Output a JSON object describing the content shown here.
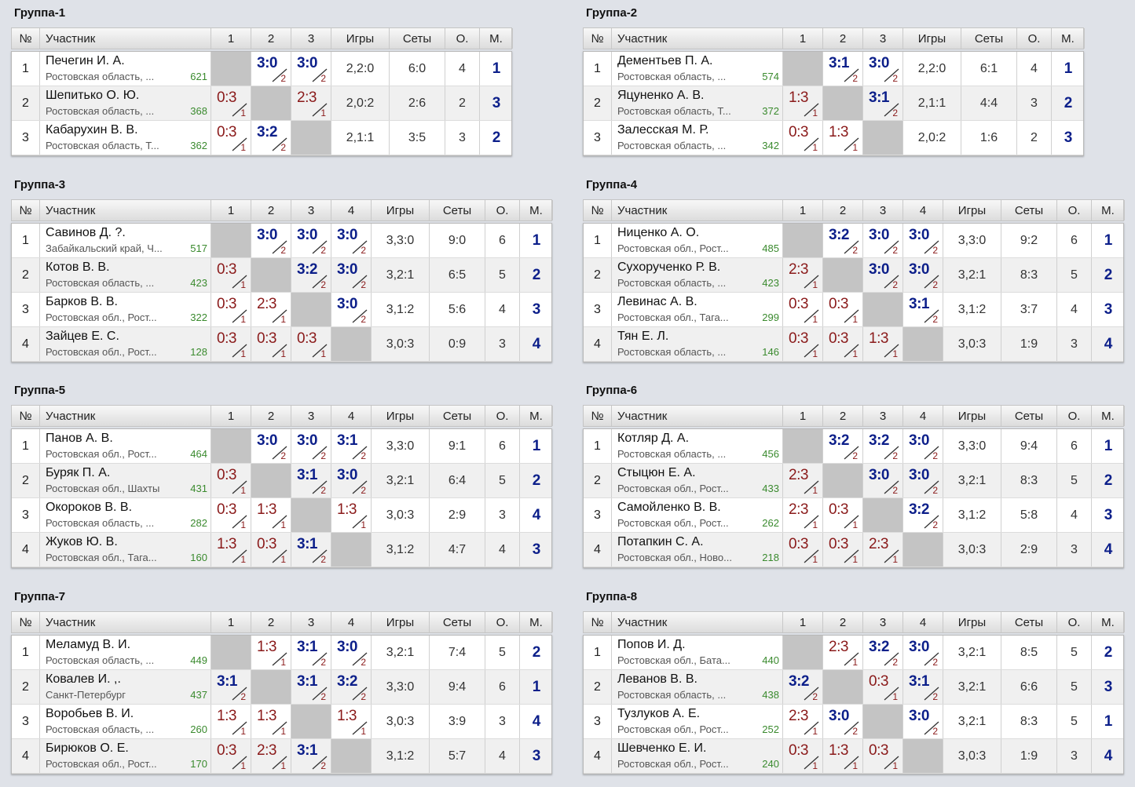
{
  "headers": {
    "num": "№",
    "participant": "Участник",
    "games": "Игры",
    "sets": "Сеты",
    "points": "О.",
    "place": "М."
  },
  "groups": [
    {
      "title": "Группа-1",
      "size": 3,
      "players": [
        {
          "n": "1",
          "name": "Печегин И. А.",
          "region": "Ростовская область, ...",
          "rating": "621",
          "res": [
            null,
            [
              "3:0",
              "2"
            ],
            [
              "3:0",
              "2"
            ]
          ],
          "games": "2,2:0",
          "sets": "6:0",
          "pts": "4",
          "place": "1"
        },
        {
          "n": "2",
          "name": "Шепитько О. Ю.",
          "region": "Ростовская область, ...",
          "rating": "368",
          "res": [
            [
              "0:3",
              "1"
            ],
            null,
            [
              "2:3",
              "1"
            ]
          ],
          "games": "2,0:2",
          "sets": "2:6",
          "pts": "2",
          "place": "3"
        },
        {
          "n": "3",
          "name": "Кабарухин В. В.",
          "region": "Ростовская область, Т...",
          "rating": "362",
          "res": [
            [
              "0:3",
              "1"
            ],
            [
              "3:2",
              "2"
            ],
            null
          ],
          "games": "2,1:1",
          "sets": "3:5",
          "pts": "3",
          "place": "2"
        }
      ]
    },
    {
      "title": "Группа-2",
      "size": 3,
      "players": [
        {
          "n": "1",
          "name": "Дементьев П. А.",
          "region": "Ростовская область, ...",
          "rating": "574",
          "res": [
            null,
            [
              "3:1",
              "2"
            ],
            [
              "3:0",
              "2"
            ]
          ],
          "games": "2,2:0",
          "sets": "6:1",
          "pts": "4",
          "place": "1"
        },
        {
          "n": "2",
          "name": "Яцуненко А. В.",
          "region": "Ростовская область, Т...",
          "rating": "372",
          "res": [
            [
              "1:3",
              "1"
            ],
            null,
            [
              "3:1",
              "2"
            ]
          ],
          "games": "2,1:1",
          "sets": "4:4",
          "pts": "3",
          "place": "2"
        },
        {
          "n": "3",
          "name": "Залесская М. Р.",
          "region": "Ростовская область, ...",
          "rating": "342",
          "res": [
            [
              "0:3",
              "1"
            ],
            [
              "1:3",
              "1"
            ],
            null
          ],
          "games": "2,0:2",
          "sets": "1:6",
          "pts": "2",
          "place": "3"
        }
      ]
    },
    {
      "title": "Группа-3",
      "size": 4,
      "players": [
        {
          "n": "1",
          "name": "Савинов Д. ?.",
          "region": "Забайкальский край, Ч...",
          "rating": "517",
          "res": [
            null,
            [
              "3:0",
              "2"
            ],
            [
              "3:0",
              "2"
            ],
            [
              "3:0",
              "2"
            ]
          ],
          "games": "3,3:0",
          "sets": "9:0",
          "pts": "6",
          "place": "1"
        },
        {
          "n": "2",
          "name": "Котов В. В.",
          "region": "Ростовская область, ...",
          "rating": "423",
          "res": [
            [
              "0:3",
              "1"
            ],
            null,
            [
              "3:2",
              "2"
            ],
            [
              "3:0",
              "2"
            ]
          ],
          "games": "3,2:1",
          "sets": "6:5",
          "pts": "5",
          "place": "2"
        },
        {
          "n": "3",
          "name": "Барков В. В.",
          "region": "Ростовская обл., Рост...",
          "rating": "322",
          "res": [
            [
              "0:3",
              "1"
            ],
            [
              "2:3",
              "1"
            ],
            null,
            [
              "3:0",
              "2"
            ]
          ],
          "games": "3,1:2",
          "sets": "5:6",
          "pts": "4",
          "place": "3"
        },
        {
          "n": "4",
          "name": "Зайцев Е. С.",
          "region": "Ростовская обл., Рост...",
          "rating": "128",
          "res": [
            [
              "0:3",
              "1"
            ],
            [
              "0:3",
              "1"
            ],
            [
              "0:3",
              "1"
            ],
            null
          ],
          "games": "3,0:3",
          "sets": "0:9",
          "pts": "3",
          "place": "4"
        }
      ]
    },
    {
      "title": "Группа-4",
      "size": 4,
      "players": [
        {
          "n": "1",
          "name": "Ниценко А. О.",
          "region": "Ростовская обл., Рост...",
          "rating": "485",
          "res": [
            null,
            [
              "3:2",
              "2"
            ],
            [
              "3:0",
              "2"
            ],
            [
              "3:0",
              "2"
            ]
          ],
          "games": "3,3:0",
          "sets": "9:2",
          "pts": "6",
          "place": "1"
        },
        {
          "n": "2",
          "name": "Сухорученко Р. В.",
          "region": "Ростовская область, ...",
          "rating": "423",
          "res": [
            [
              "2:3",
              "1"
            ],
            null,
            [
              "3:0",
              "2"
            ],
            [
              "3:0",
              "2"
            ]
          ],
          "games": "3,2:1",
          "sets": "8:3",
          "pts": "5",
          "place": "2"
        },
        {
          "n": "3",
          "name": "Левинас А. В.",
          "region": "Ростовская обл., Тага...",
          "rating": "299",
          "res": [
            [
              "0:3",
              "1"
            ],
            [
              "0:3",
              "1"
            ],
            null,
            [
              "3:1",
              "2"
            ]
          ],
          "games": "3,1:2",
          "sets": "3:7",
          "pts": "4",
          "place": "3"
        },
        {
          "n": "4",
          "name": "Тян Е. Л.",
          "region": "Ростовская область, ...",
          "rating": "146",
          "res": [
            [
              "0:3",
              "1"
            ],
            [
              "0:3",
              "1"
            ],
            [
              "1:3",
              "1"
            ],
            null
          ],
          "games": "3,0:3",
          "sets": "1:9",
          "pts": "3",
          "place": "4"
        }
      ]
    },
    {
      "title": "Группа-5",
      "size": 4,
      "players": [
        {
          "n": "1",
          "name": "Панов А. В.",
          "region": "Ростовская обл., Рост...",
          "rating": "464",
          "res": [
            null,
            [
              "3:0",
              "2"
            ],
            [
              "3:0",
              "2"
            ],
            [
              "3:1",
              "2"
            ]
          ],
          "games": "3,3:0",
          "sets": "9:1",
          "pts": "6",
          "place": "1"
        },
        {
          "n": "2",
          "name": "Буряк П. А.",
          "region": "Ростовская обл., Шахты",
          "rating": "431",
          "res": [
            [
              "0:3",
              "1"
            ],
            null,
            [
              "3:1",
              "2"
            ],
            [
              "3:0",
              "2"
            ]
          ],
          "games": "3,2:1",
          "sets": "6:4",
          "pts": "5",
          "place": "2"
        },
        {
          "n": "3",
          "name": "Окороков В. В.",
          "region": "Ростовская область, ...",
          "rating": "282",
          "res": [
            [
              "0:3",
              "1"
            ],
            [
              "1:3",
              "1"
            ],
            null,
            [
              "1:3",
              "1"
            ]
          ],
          "games": "3,0:3",
          "sets": "2:9",
          "pts": "3",
          "place": "4"
        },
        {
          "n": "4",
          "name": "Жуков Ю. В.",
          "region": "Ростовская обл., Тага...",
          "rating": "160",
          "res": [
            [
              "1:3",
              "1"
            ],
            [
              "0:3",
              "1"
            ],
            [
              "3:1",
              "2"
            ],
            null
          ],
          "games": "3,1:2",
          "sets": "4:7",
          "pts": "4",
          "place": "3"
        }
      ]
    },
    {
      "title": "Группа-6",
      "size": 4,
      "players": [
        {
          "n": "1",
          "name": "Котляр Д. А.",
          "region": "Ростовская область, ...",
          "rating": "456",
          "res": [
            null,
            [
              "3:2",
              "2"
            ],
            [
              "3:2",
              "2"
            ],
            [
              "3:0",
              "2"
            ]
          ],
          "games": "3,3:0",
          "sets": "9:4",
          "pts": "6",
          "place": "1"
        },
        {
          "n": "2",
          "name": "Стыцюн Е. А.",
          "region": "Ростовская обл., Рост...",
          "rating": "433",
          "res": [
            [
              "2:3",
              "1"
            ],
            null,
            [
              "3:0",
              "2"
            ],
            [
              "3:0",
              "2"
            ]
          ],
          "games": "3,2:1",
          "sets": "8:3",
          "pts": "5",
          "place": "2"
        },
        {
          "n": "3",
          "name": "Самойленко В. В.",
          "region": "Ростовская обл., Рост...",
          "rating": "262",
          "res": [
            [
              "2:3",
              "1"
            ],
            [
              "0:3",
              "1"
            ],
            null,
            [
              "3:2",
              "2"
            ]
          ],
          "games": "3,1:2",
          "sets": "5:8",
          "pts": "4",
          "place": "3"
        },
        {
          "n": "4",
          "name": "Потапкин С. А.",
          "region": "Ростовская обл., Ново...",
          "rating": "218",
          "res": [
            [
              "0:3",
              "1"
            ],
            [
              "0:3",
              "1"
            ],
            [
              "2:3",
              "1"
            ],
            null
          ],
          "games": "3,0:3",
          "sets": "2:9",
          "pts": "3",
          "place": "4"
        }
      ]
    },
    {
      "title": "Группа-7",
      "size": 4,
      "players": [
        {
          "n": "1",
          "name": "Меламуд В. И.",
          "region": "Ростовская область, ...",
          "rating": "449",
          "res": [
            null,
            [
              "1:3",
              "1"
            ],
            [
              "3:1",
              "2"
            ],
            [
              "3:0",
              "2"
            ]
          ],
          "games": "3,2:1",
          "sets": "7:4",
          "pts": "5",
          "place": "2"
        },
        {
          "n": "2",
          "name": "Ковалев И. ,.",
          "region": "Санкт-Петербург",
          "rating": "437",
          "res": [
            [
              "3:1",
              "2"
            ],
            null,
            [
              "3:1",
              "2"
            ],
            [
              "3:2",
              "2"
            ]
          ],
          "games": "3,3:0",
          "sets": "9:4",
          "pts": "6",
          "place": "1"
        },
        {
          "n": "3",
          "name": "Воробьев В. И.",
          "region": "Ростовская область, ...",
          "rating": "260",
          "res": [
            [
              "1:3",
              "1"
            ],
            [
              "1:3",
              "1"
            ],
            null,
            [
              "1:3",
              "1"
            ]
          ],
          "games": "3,0:3",
          "sets": "3:9",
          "pts": "3",
          "place": "4"
        },
        {
          "n": "4",
          "name": "Бирюков О. Е.",
          "region": "Ростовская обл., Рост...",
          "rating": "170",
          "res": [
            [
              "0:3",
              "1"
            ],
            [
              "2:3",
              "1"
            ],
            [
              "3:1",
              "2"
            ],
            null
          ],
          "games": "3,1:2",
          "sets": "5:7",
          "pts": "4",
          "place": "3"
        }
      ]
    },
    {
      "title": "Группа-8",
      "size": 4,
      "players": [
        {
          "n": "1",
          "name": "Попов И. Д.",
          "region": "Ростовская обл., Бата...",
          "rating": "440",
          "res": [
            null,
            [
              "2:3",
              "1"
            ],
            [
              "3:2",
              "2"
            ],
            [
              "3:0",
              "2"
            ]
          ],
          "games": "3,2:1",
          "sets": "8:5",
          "pts": "5",
          "place": "2"
        },
        {
          "n": "2",
          "name": "Леванов В. В.",
          "region": "Ростовская область, ...",
          "rating": "438",
          "res": [
            [
              "3:2",
              "2"
            ],
            null,
            [
              "0:3",
              "1"
            ],
            [
              "3:1",
              "2"
            ]
          ],
          "games": "3,2:1",
          "sets": "6:6",
          "pts": "5",
          "place": "3"
        },
        {
          "n": "3",
          "name": "Тузлуков А. Е.",
          "region": "Ростовская обл., Рост...",
          "rating": "252",
          "res": [
            [
              "2:3",
              "1"
            ],
            [
              "3:0",
              "2"
            ],
            null,
            [
              "3:0",
              "2"
            ]
          ],
          "games": "3,2:1",
          "sets": "8:3",
          "pts": "5",
          "place": "1"
        },
        {
          "n": "4",
          "name": "Шевченко Е. И.",
          "region": "Ростовская обл., Рост...",
          "rating": "240",
          "res": [
            [
              "0:3",
              "1"
            ],
            [
              "1:3",
              "1"
            ],
            [
              "0:3",
              "1"
            ],
            null
          ],
          "games": "3,0:3",
          "sets": "1:9",
          "pts": "3",
          "place": "4"
        }
      ]
    }
  ]
}
